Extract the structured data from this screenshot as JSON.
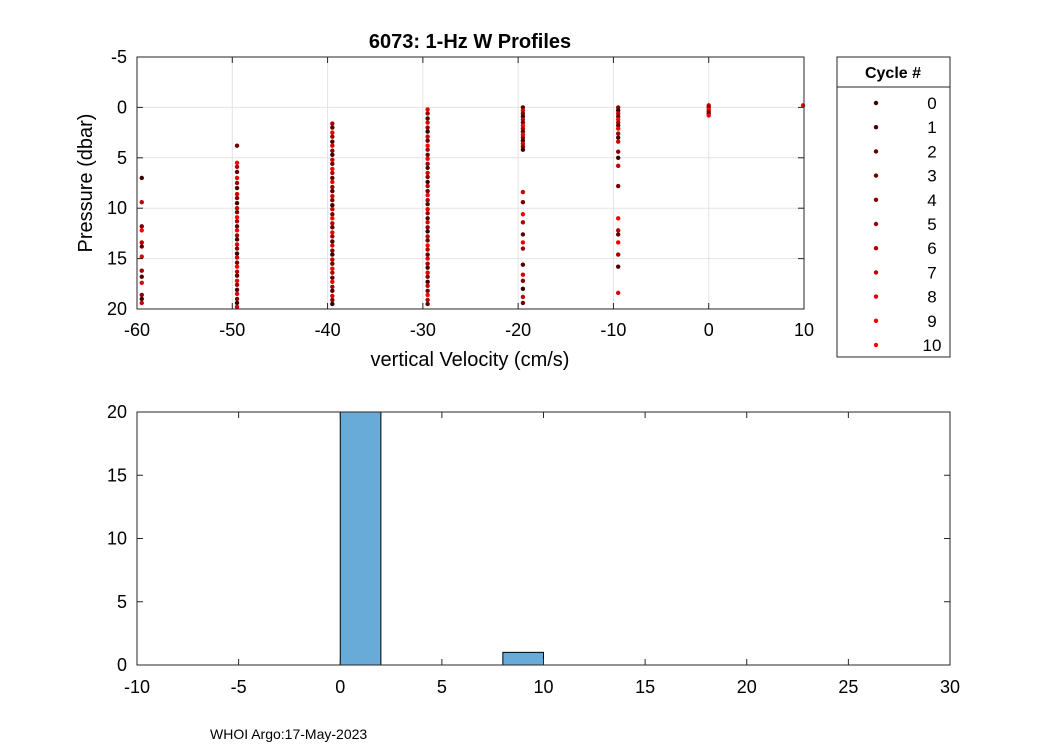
{
  "chart_data": [
    {
      "type": "scatter",
      "title": "6073: 1-Hz W Profiles",
      "xlabel": "vertical Velocity (cm/s)",
      "ylabel": "Pressure (dbar)",
      "xlim": [
        -60,
        10
      ],
      "ylim": [
        -5,
        20
      ],
      "y_reversed": true,
      "grid": true,
      "xticks": [
        -60,
        -50,
        -40,
        -30,
        -20,
        -10,
        0,
        10
      ],
      "yticks": [
        -5,
        0,
        5,
        10,
        15,
        20
      ],
      "xtick_labels": [
        "-60",
        "-50",
        "-40",
        "-30",
        "-20",
        "-10",
        "0",
        "10"
      ],
      "ytick_labels": [
        "-5",
        "0",
        "5",
        "10",
        "15",
        "20"
      ],
      "legend": {
        "title": "Cycle #",
        "placement": "outside-right",
        "entries": [
          "0",
          "1",
          "2",
          "3",
          "4",
          "5",
          "6",
          "7",
          "8",
          "9",
          "10"
        ],
        "colors": [
          "#3a0000",
          "#4d0000",
          "#600000",
          "#730000",
          "#880000",
          "#9c0000",
          "#b00000",
          "#c40000",
          "#d80000",
          "#ec0000",
          "#ff0000"
        ]
      },
      "columns": [
        {
          "x": -59.5,
          "p": [
            7.0,
            9.4,
            11.8,
            12.2,
            13.4,
            13.8,
            14.8,
            16.2,
            16.8,
            17.4,
            18.6,
            19.0,
            19.4
          ]
        },
        {
          "x": -49.5,
          "p": [
            3.8,
            5.5,
            5.9,
            6.4,
            7.0,
            7.5,
            8.0,
            8.6,
            9.0,
            9.5,
            10.0,
            10.4,
            10.9,
            11.3,
            11.8,
            12.2,
            12.7,
            13.1,
            13.6,
            14.0,
            14.5,
            14.9,
            15.4,
            15.8,
            16.3,
            16.7,
            17.2,
            17.6,
            18.1,
            18.5,
            19.0,
            19.4,
            19.8
          ]
        },
        {
          "x": -39.5,
          "p": [
            1.6,
            2.0,
            2.5,
            2.9,
            3.4,
            3.8,
            4.3,
            4.7,
            5.2,
            5.6,
            6.1,
            6.5,
            7.0,
            7.4,
            7.9,
            8.3,
            8.8,
            9.2,
            9.7,
            10.1,
            10.6,
            11.0,
            11.5,
            11.9,
            12.4,
            12.8,
            13.3,
            13.7,
            14.2,
            14.6,
            15.1,
            15.5,
            16.0,
            16.4,
            16.9,
            17.3,
            17.8,
            18.2,
            18.7,
            19.1,
            19.5
          ]
        },
        {
          "x": -29.5,
          "p": [
            0.2,
            0.6,
            1.1,
            1.5,
            2.0,
            2.4,
            2.9,
            3.3,
            3.8,
            4.2,
            4.7,
            5.1,
            5.6,
            6.0,
            6.5,
            6.9,
            7.4,
            7.8,
            8.3,
            8.7,
            9.2,
            9.6,
            10.1,
            10.5,
            11.0,
            11.4,
            11.9,
            12.3,
            12.8,
            13.2,
            13.7,
            14.1,
            14.6,
            15.0,
            15.5,
            15.9,
            16.4,
            16.8,
            17.3,
            17.7,
            18.2,
            18.6,
            19.1,
            19.5
          ]
        },
        {
          "x": -19.5,
          "p": [
            0.0,
            0.3,
            0.6,
            0.9,
            1.2,
            1.5,
            1.8,
            2.1,
            2.4,
            2.7,
            3.0,
            3.3,
            3.6,
            3.9,
            4.2,
            8.4,
            9.4,
            10.6,
            11.4,
            12.6,
            13.4,
            14.0,
            15.6,
            16.6,
            17.2,
            18.0,
            18.8,
            19.4
          ]
        },
        {
          "x": -9.5,
          "p": [
            0.0,
            0.3,
            0.6,
            0.9,
            1.2,
            1.5,
            1.8,
            2.1,
            2.6,
            3.0,
            3.4,
            4.4,
            5.0,
            5.8,
            7.8,
            11.0,
            12.2,
            12.6,
            13.4,
            14.6,
            15.8,
            18.4
          ]
        },
        {
          "x": 0.0,
          "p": [
            -0.2,
            0.0,
            0.2,
            0.4,
            0.6,
            0.8
          ]
        },
        {
          "x": 9.9,
          "p": [
            -0.2
          ]
        }
      ]
    },
    {
      "type": "bar",
      "title": "",
      "xlim": [
        -10,
        30
      ],
      "ylim": [
        0,
        20
      ],
      "grid": false,
      "xticks": [
        -10,
        -5,
        0,
        5,
        10,
        15,
        20,
        25,
        30
      ],
      "yticks": [
        0,
        5,
        10,
        15,
        20
      ],
      "xtick_labels": [
        "-10",
        "-5",
        "0",
        "5",
        "10",
        "15",
        "20",
        "25",
        "30"
      ],
      "ytick_labels": [
        "0",
        "5",
        "10",
        "15",
        "20"
      ],
      "bin_width": 2,
      "bins": [
        {
          "start": 0,
          "end": 2,
          "value": 20
        },
        {
          "start": 8,
          "end": 10,
          "value": 1
        }
      ],
      "bar_color": "#68aad8"
    }
  ],
  "footer": "WHOI Argo:17-May-2023"
}
